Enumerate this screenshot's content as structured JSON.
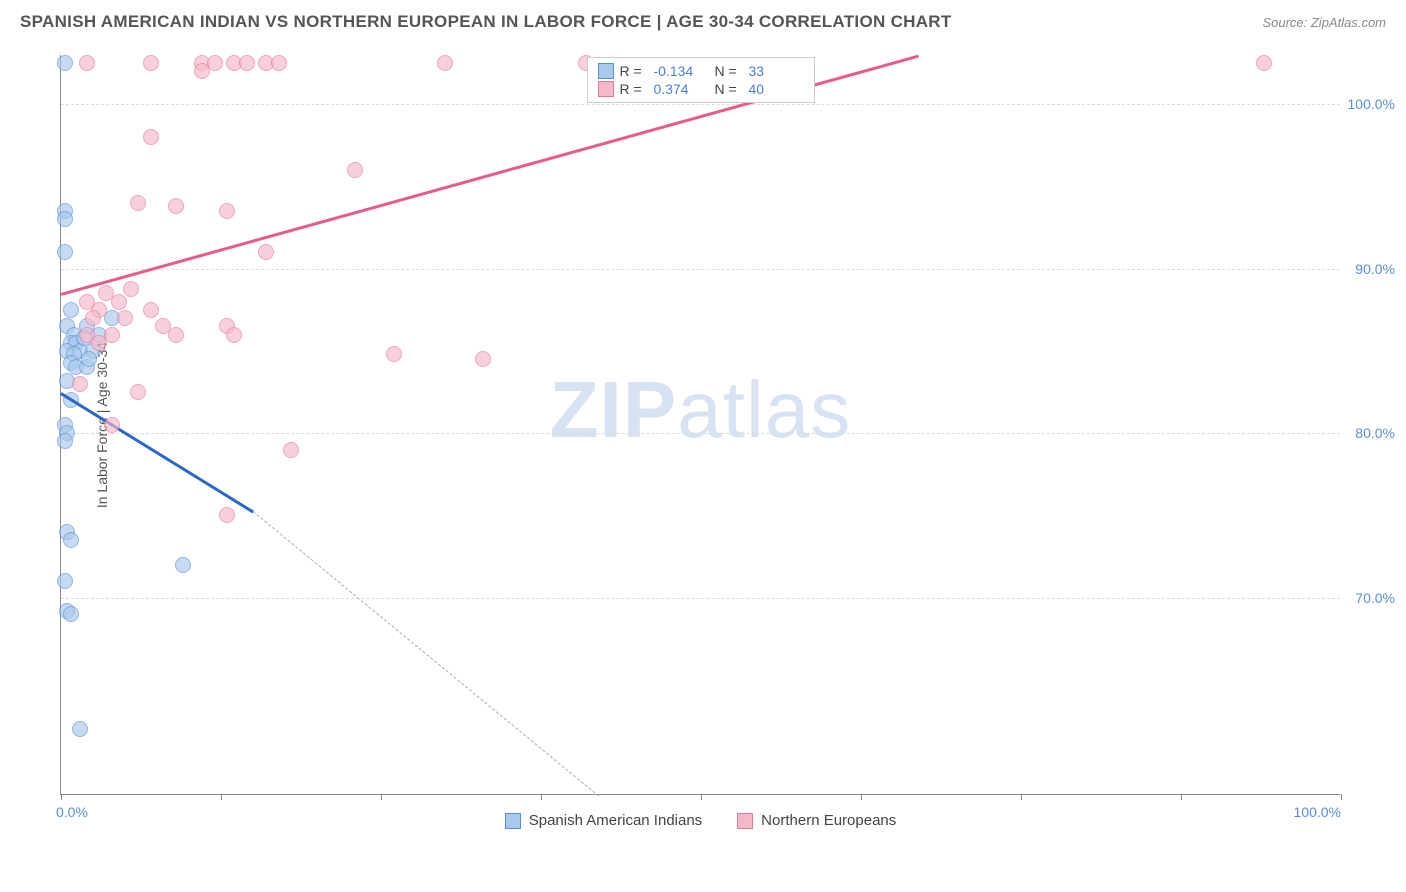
{
  "title": "SPANISH AMERICAN INDIAN VS NORTHERN EUROPEAN IN LABOR FORCE | AGE 30-34 CORRELATION CHART",
  "source": "Source: ZipAtlas.com",
  "watermark_bold": "ZIP",
  "watermark_light": "atlas",
  "y_axis_label": "In Labor Force | Age 30-34",
  "chart": {
    "type": "scatter",
    "background_color": "#ffffff",
    "grid_color": "#dddddd",
    "axis_color": "#888888",
    "text_color_axis": "#5a8fd8",
    "x_range": [
      0,
      100
    ],
    "y_range": [
      58,
      103
    ],
    "y_ticks": [
      70,
      80,
      90,
      100
    ],
    "y_tick_labels": [
      "70.0%",
      "80.0%",
      "90.0%",
      "100.0%"
    ],
    "x_ticks": [
      0,
      12.5,
      25,
      37.5,
      50,
      62.5,
      75,
      87.5,
      100
    ],
    "x_tick_labels_shown": {
      "0": "0.0%",
      "100": "100.0%"
    },
    "marker_radius": 8,
    "series": [
      {
        "name": "Spanish American Indians",
        "color_fill": "#a8c8ec",
        "color_stroke": "#5a8fd8",
        "R": "-0.134",
        "N": "33",
        "trend": {
          "x1": 0,
          "y1": 82.5,
          "x2": 15,
          "y2": 75.3,
          "color": "#2968c8",
          "width": 2.5
        },
        "trend_extrapolate": {
          "x1": 15,
          "y1": 75.3,
          "x2": 42,
          "y2": 58
        },
        "points": [
          [
            0.3,
            102.5
          ],
          [
            0.3,
            93.5
          ],
          [
            0.3,
            93
          ],
          [
            0.3,
            91
          ],
          [
            0.8,
            87.5
          ],
          [
            0.5,
            86.5
          ],
          [
            1,
            86
          ],
          [
            0.8,
            85.5
          ],
          [
            1.2,
            85.5
          ],
          [
            0.5,
            85
          ],
          [
            1.5,
            85
          ],
          [
            1,
            84.8
          ],
          [
            0.8,
            84.3
          ],
          [
            1.2,
            84
          ],
          [
            0.5,
            83.2
          ],
          [
            0.8,
            82
          ],
          [
            0.3,
            80.5
          ],
          [
            0.5,
            80
          ],
          [
            0.3,
            79.5
          ],
          [
            0.5,
            74
          ],
          [
            0.8,
            73.5
          ],
          [
            0.3,
            71
          ],
          [
            0.5,
            69.2
          ],
          [
            0.8,
            69
          ],
          [
            9.5,
            72
          ],
          [
            4,
            87
          ],
          [
            3,
            86
          ],
          [
            2.5,
            85
          ],
          [
            2,
            84
          ],
          [
            1.5,
            62
          ],
          [
            2,
            86.5
          ],
          [
            1.8,
            85.8
          ],
          [
            2.2,
            84.5
          ]
        ]
      },
      {
        "name": "Northern Europeans",
        "color_fill": "#f5b8c8",
        "color_stroke": "#e87898",
        "R": "0.374",
        "N": "40",
        "trend": {
          "x1": 0,
          "y1": 88.5,
          "x2": 67,
          "y2": 103,
          "color": "#e85a8a",
          "width": 2.5
        },
        "points": [
          [
            2,
            102.5
          ],
          [
            7,
            102.5
          ],
          [
            11,
            102.5
          ],
          [
            12,
            102.5
          ],
          [
            13.5,
            102.5
          ],
          [
            14.5,
            102.5
          ],
          [
            16,
            102.5
          ],
          [
            17,
            102.5
          ],
          [
            30,
            102.5
          ],
          [
            41,
            102.5
          ],
          [
            94,
            102.5
          ],
          [
            7,
            98
          ],
          [
            11,
            102
          ],
          [
            6,
            94
          ],
          [
            9,
            93.8
          ],
          [
            13,
            93.5
          ],
          [
            23,
            96
          ],
          [
            16,
            91
          ],
          [
            13,
            86.5
          ],
          [
            26,
            84.8
          ],
          [
            33,
            84.5
          ],
          [
            13.5,
            86
          ],
          [
            7,
            87.5
          ],
          [
            4,
            80.5
          ],
          [
            4.5,
            88
          ],
          [
            5,
            87
          ],
          [
            3,
            87.5
          ],
          [
            2.5,
            87
          ],
          [
            2,
            86
          ],
          [
            1.5,
            83
          ],
          [
            3.5,
            88.5
          ],
          [
            6,
            82.5
          ],
          [
            8,
            86.5
          ],
          [
            9,
            86
          ],
          [
            18,
            79
          ],
          [
            13,
            75
          ],
          [
            2,
            88
          ],
          [
            3,
            85.5
          ],
          [
            4,
            86
          ],
          [
            5.5,
            88.8
          ]
        ]
      }
    ]
  },
  "legend_bottom": [
    {
      "label": "Spanish American Indians",
      "fill": "#a8c8ec",
      "stroke": "#5a8fd8"
    },
    {
      "label": "Northern Europeans",
      "fill": "#f5b8c8",
      "stroke": "#e87898"
    }
  ]
}
